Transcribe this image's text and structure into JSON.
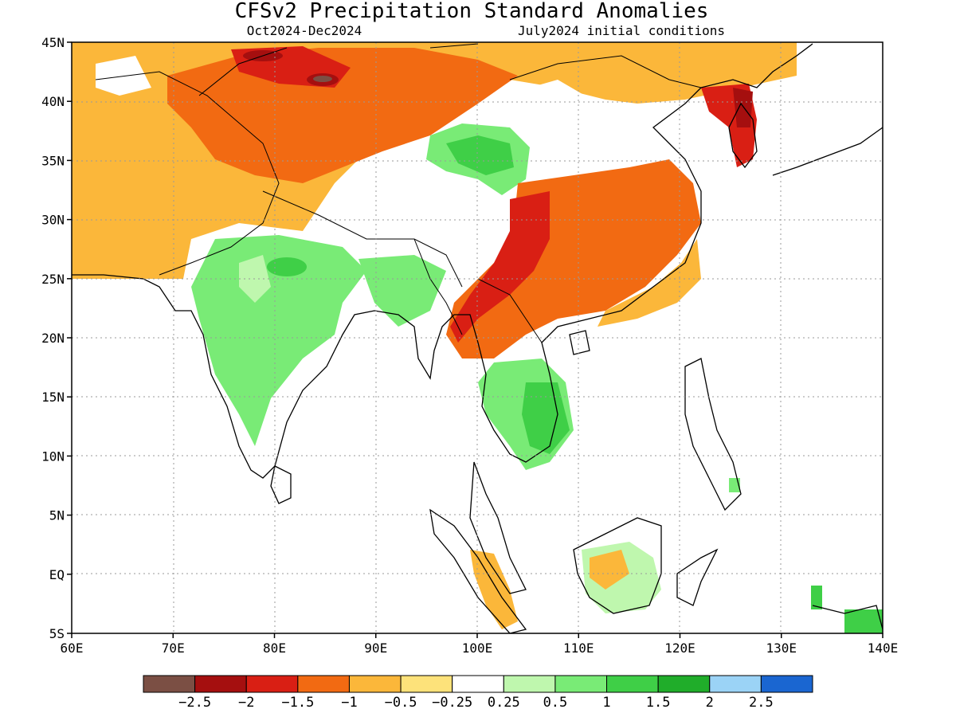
{
  "title": "CFSv2 Precipitation Standard Anomalies",
  "period": "Oct2024-Dec2024",
  "initial_conditions": "July2024 initial conditions",
  "axes": {
    "lat_labels": [
      "45N",
      "40N",
      "35N",
      "30N",
      "25N",
      "20N",
      "15N",
      "10N",
      "5N",
      "EQ",
      "5S"
    ],
    "lon_labels": [
      "60E",
      "70E",
      "80E",
      "90E",
      "100E",
      "110E",
      "120E",
      "130E",
      "140E"
    ],
    "lat_range": [
      -5,
      45
    ],
    "lon_range": [
      60,
      140
    ],
    "grid": "dotted"
  },
  "colorbar": {
    "colors": [
      "#7b4f44",
      "#a50f0f",
      "#d91f14",
      "#f26a12",
      "#fbb73a",
      "#fde27a",
      "#ffffff",
      "#bff7ae",
      "#79eb76",
      "#3fcf47",
      "#20ad2a",
      "#9bd3f6",
      "#1a66d1"
    ],
    "labels": [
      "-2.5",
      "-2",
      "-1.5",
      "-1",
      "-0.5",
      "-0.25",
      "0.25",
      "0.5",
      "1",
      "1.5",
      "2",
      "2.5"
    ]
  },
  "regions": [
    {
      "name": "northwest",
      "color": "#fbb73a"
    },
    {
      "name": "north-west-china",
      "color": "#f26a12"
    },
    {
      "name": "south-china",
      "color": "#f26a12"
    },
    {
      "name": "india",
      "color": "#79eb76"
    },
    {
      "name": "indochina",
      "color": "#3fcf47"
    },
    {
      "name": "korea",
      "color": "#a50f0f"
    }
  ]
}
